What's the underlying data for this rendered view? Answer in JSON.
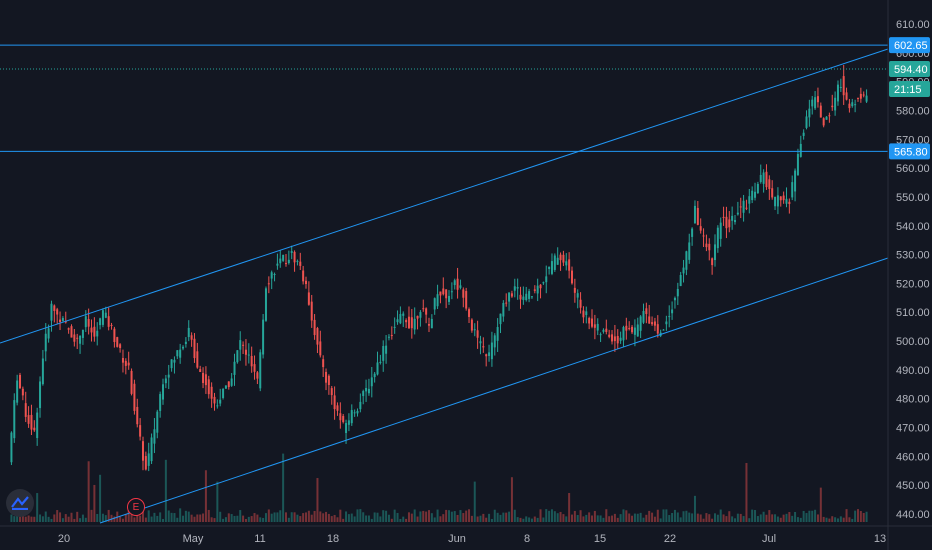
{
  "colors": {
    "background": "#131722",
    "up": "#26a69a",
    "down": "#ef5350",
    "level_line": "#2196f3",
    "price_tag_bg": "#26a69a",
    "level_tag_bg": "#2196f3",
    "axis_text": "#b2b5be"
  },
  "logo": {
    "icon": "tradingview-logo-icon"
  },
  "earnings_marker": {
    "label": "E"
  },
  "chart_data": {
    "type": "candlestick",
    "ylim": [
      435,
      615
    ],
    "y_ticks": [
      "610.00",
      "600.00",
      "590.00",
      "580.00",
      "570.00",
      "560.00",
      "550.00",
      "540.00",
      "530.00",
      "520.00",
      "510.00",
      "500.00",
      "490.00",
      "480.00",
      "470.00",
      "460.00",
      "450.00",
      "440.00"
    ],
    "x_ticks": [
      "20",
      "May",
      "11",
      "18",
      "Jun",
      "8",
      "15",
      "22",
      "Jul",
      "13"
    ],
    "horizontal_levels": [
      602.65,
      565.8
    ],
    "last_price": "594.40",
    "countdown": "21:15",
    "level_labels": [
      "602.65",
      "565.80"
    ],
    "series": [
      {
        "kind": "price-path",
        "values": [
          458,
          488,
          475,
          468,
          495,
          512,
          508,
          504,
          500,
          507,
          501,
          510,
          504,
          496,
          490,
          470,
          455,
          470,
          487,
          492,
          498,
          503,
          492,
          485,
          478,
          482,
          488,
          500,
          494,
          485,
          520,
          525,
          528,
          530,
          526,
          514,
          498,
          487,
          478,
          470,
          475,
          479,
          485,
          492,
          500,
          505,
          509,
          505,
          512,
          505,
          518,
          515,
          520,
          517,
          505,
          498,
          495,
          505,
          515,
          518,
          515,
          516,
          520,
          525,
          530,
          527,
          517,
          510,
          506,
          503,
          502,
          500,
          505,
          503,
          510,
          507,
          502,
          510,
          518,
          530,
          545,
          535,
          528,
          542,
          540,
          545,
          548,
          553,
          558,
          548,
          550,
          548,
          565,
          578,
          585,
          575,
          582,
          590,
          580,
          585,
          584
        ]
      }
    ],
    "volume": "histogram"
  }
}
